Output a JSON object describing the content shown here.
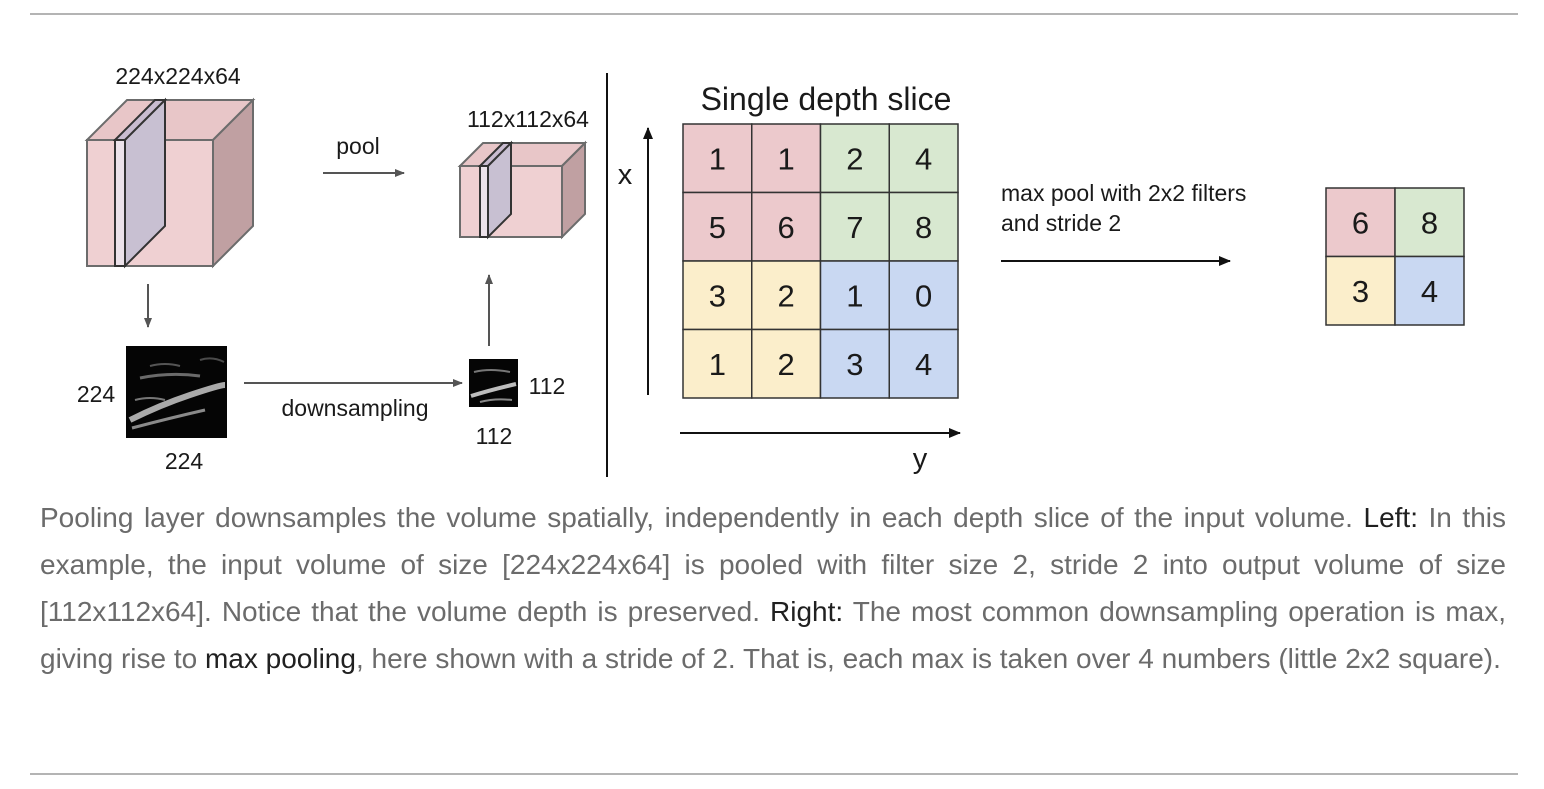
{
  "left": {
    "input_size_label": "224x224x64",
    "pool_label": "pool",
    "output_size_label": "112x112x64",
    "slice_height_label": "224",
    "slice_width_label": "224",
    "downsampling_label": "downsampling",
    "small_height_label": "112",
    "small_width_label": "112"
  },
  "right": {
    "title": "Single depth slice",
    "x_axis": "x",
    "y_axis": "y",
    "grid": [
      [
        1,
        1,
        2,
        4
      ],
      [
        5,
        6,
        7,
        8
      ],
      [
        3,
        2,
        1,
        0
      ],
      [
        1,
        2,
        3,
        4
      ]
    ],
    "operation_line1": "max pool with 2x2 filters",
    "operation_line2": "and stride 2",
    "result": [
      [
        6,
        8
      ],
      [
        3,
        4
      ]
    ],
    "quadrant_colors": {
      "top_left": "#ecc9cc",
      "top_right": "#d8e8d0",
      "bottom_left": "#fbeecb",
      "bottom_right": "#c9d8f2"
    }
  },
  "caption": {
    "p1": "Pooling layer downsamples the volume spatially, independently in each depth slice of the input volume. ",
    "left_label": "Left:",
    "p2": " In this example, the input volume of size [224x224x64] is pooled with filter size 2, stride 2 into output volume of size [112x112x64]. Notice that the volume depth is preserved. ",
    "right_label": "Right:",
    "p3": " The most common downsampling operation is max, giving rise to ",
    "max_pooling": "max pooling",
    "p4": ", here shown with a stride of 2. That is, each max is taken over 4 numbers (little 2x2 square)."
  }
}
